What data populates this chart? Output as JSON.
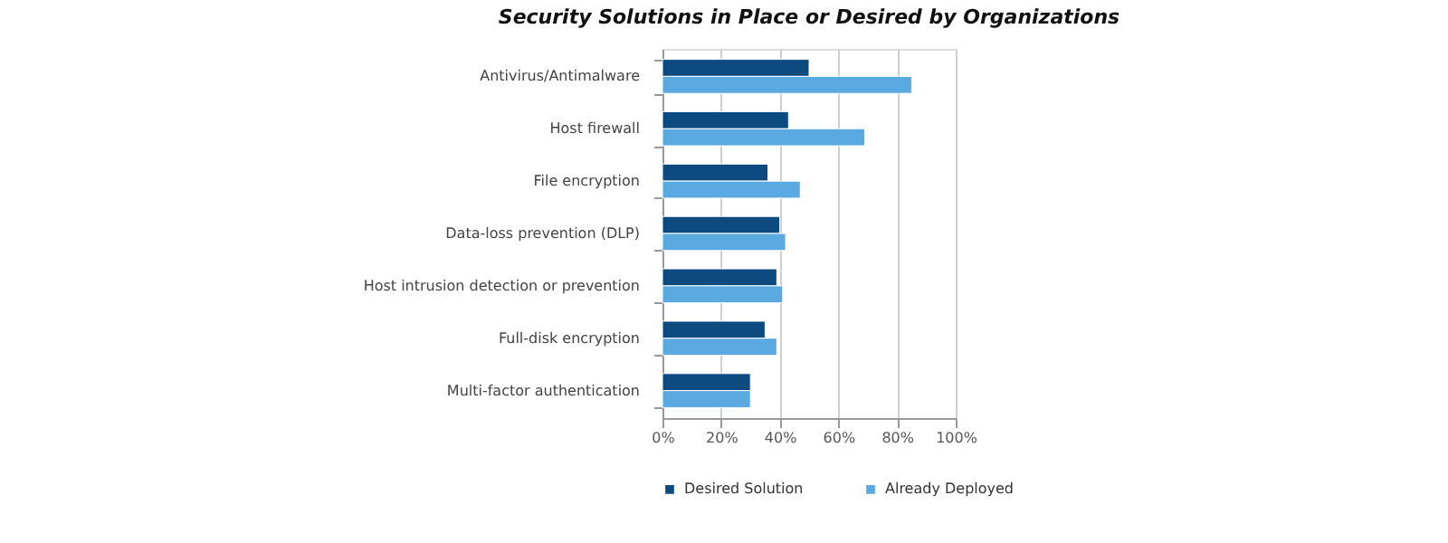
{
  "chart_data": {
    "type": "bar",
    "orientation": "horizontal",
    "title": "Security Solutions in Place or Desired by Organizations",
    "categories": [
      "Antivirus/Antimalware",
      "Host firewall",
      "File encryption",
      "Data-loss prevention (DLP)",
      "Host intrusion detection or prevention",
      "Full-disk encryption",
      "Multi-factor authentication"
    ],
    "series": [
      {
        "name": "Desired Solution",
        "color": "#0d4a80",
        "values": [
          50,
          43,
          36,
          40,
          39,
          35,
          30
        ]
      },
      {
        "name": "Already Deployed",
        "color": "#5aa9e0",
        "values": [
          85,
          69,
          47,
          42,
          41,
          39,
          30
        ]
      }
    ],
    "xlim": [
      0,
      100
    ],
    "xticks": [
      {
        "value": 0,
        "label": "0%"
      },
      {
        "value": 20,
        "label": "20%"
      },
      {
        "value": 40,
        "label": "40%"
      },
      {
        "value": 60,
        "label": "60%"
      },
      {
        "value": 80,
        "label": "80%"
      },
      {
        "value": 100,
        "label": "100%"
      }
    ],
    "grid": "x",
    "legend": "bottom"
  }
}
